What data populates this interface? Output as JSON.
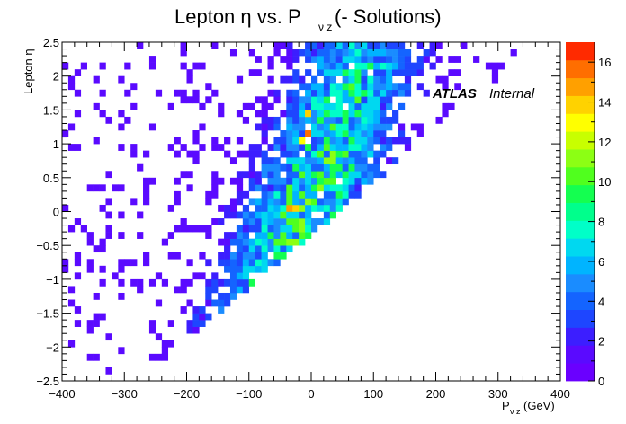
{
  "chart_data": {
    "type": "heatmap",
    "title_main": "Lepton η vs. P",
    "title_sub": "ν z",
    "title_tail": " (- Solutions)",
    "xlabel_main": "P",
    "xlabel_sub": "ν z",
    "xlabel_tail": " (GeV)",
    "ylabel": "Lepton η",
    "xlim": [
      -400,
      400
    ],
    "ylim": [
      -2.5,
      2.5
    ],
    "x_ticks": [
      -400,
      -300,
      -200,
      -100,
      0,
      100,
      200,
      300,
      400
    ],
    "x_tick_labels": [
      "−400",
      "−300",
      "−200",
      "−100",
      "0",
      "100",
      "200",
      "300",
      "400"
    ],
    "y_ticks": [
      -2.5,
      -2,
      -1.5,
      -1,
      -0.5,
      0,
      0.5,
      1,
      1.5,
      2,
      2.5
    ],
    "y_tick_labels": [
      "−2.5",
      "−2",
      "−1.5",
      "−1",
      "−0.5",
      "0",
      "0.5",
      "1",
      "1.5",
      "2",
      "2.5"
    ],
    "z_ticks": [
      0,
      2,
      4,
      6,
      8,
      10,
      12,
      14,
      16
    ],
    "z_tick_labels": [
      "0",
      "2",
      "4",
      "6",
      "8",
      "10",
      "12",
      "14",
      "16"
    ],
    "zlim": [
      0,
      17
    ],
    "bins": {
      "x_min": -400,
      "x_max": 400,
      "x_bins": 80,
      "y_min": -2.5,
      "y_max": 2.5,
      "y_bins": 50
    },
    "counts_note_source": "approximated from image",
    "hot_spots": [
      {
        "x": -5,
        "y": 1.15,
        "z": 16
      },
      {
        "x": -35,
        "y": 0.05,
        "z": 15
      },
      {
        "x": -25,
        "y": 0.05,
        "z": 14
      },
      {
        "x": -15,
        "y": 1.05,
        "z": 13
      },
      {
        "x": -5,
        "y": 1.45,
        "z": 14
      }
    ],
    "annotation_bold": "ATLAS",
    "annotation_text": "Internal",
    "palette": [
      "#6a00ff",
      "#5a0aff",
      "#3c1eff",
      "#1e46ff",
      "#1464ff",
      "#1a8cff",
      "#00b4ff",
      "#00d8f0",
      "#00ffc8",
      "#00ff8c",
      "#14ff50",
      "#50ff1e",
      "#8cff14",
      "#c8ff00",
      "#ffff00",
      "#ffd200",
      "#ffa000",
      "#ff6e00",
      "#ff2a00"
    ]
  }
}
